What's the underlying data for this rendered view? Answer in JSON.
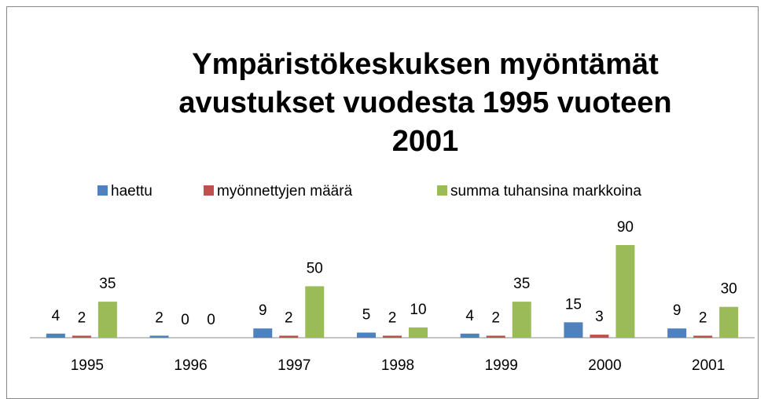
{
  "chart_data": {
    "type": "bar",
    "title": "Ympäristökeskuksen myöntämät avustukset vuodesta 1995 vuoteen 2001",
    "categories": [
      "1995",
      "1996",
      "1997",
      "1998",
      "1999",
      "2000",
      "2001"
    ],
    "series": [
      {
        "name": "haettu",
        "color": "#4f81bd",
        "values": [
          4,
          2,
          9,
          5,
          4,
          15,
          9
        ]
      },
      {
        "name": "myönnettyjen määrä",
        "color": "#c0504d",
        "values": [
          2,
          0,
          2,
          2,
          2,
          3,
          2
        ]
      },
      {
        "name": "summa tuhansina markkoina",
        "color": "#9bbb59",
        "values": [
          35,
          0,
          50,
          10,
          35,
          90,
          30
        ]
      }
    ],
    "legend": "top",
    "data_labels": true
  }
}
